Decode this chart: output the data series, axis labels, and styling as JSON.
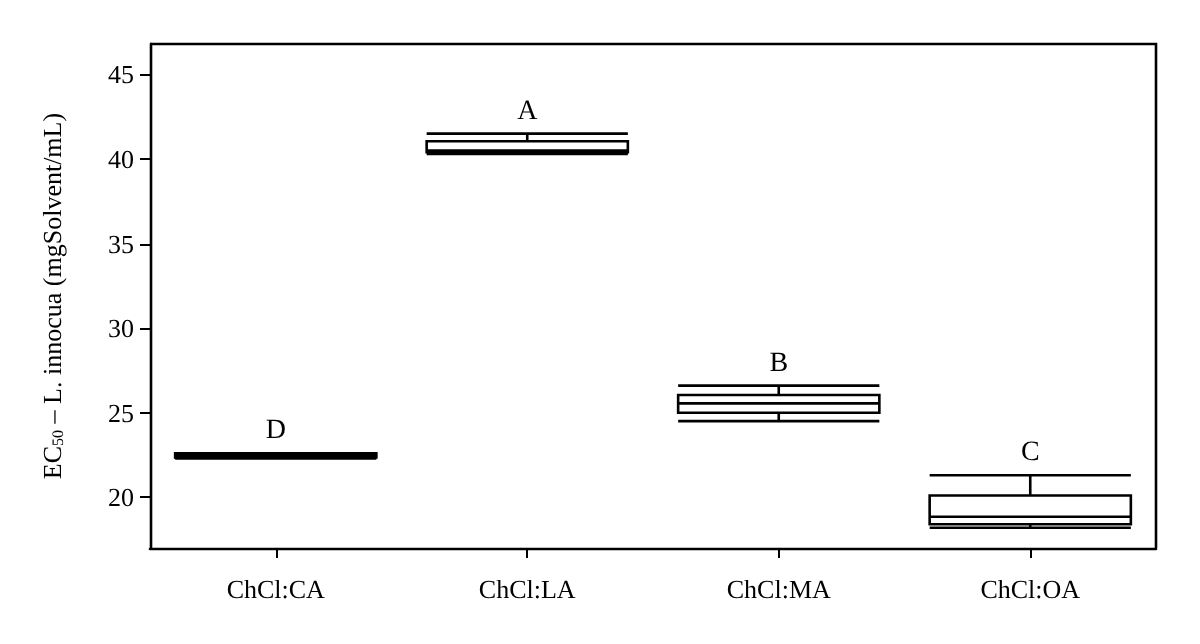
{
  "chart_data": {
    "type": "box",
    "ylabel": "EC$_{50}$ – L. innocua (mgSolvent/mL)",
    "categories": [
      "ChCl:CA",
      "ChCl:LA",
      "ChCl:MA",
      "ChCl:OA"
    ],
    "color": "#000000",
    "boxes": [
      {
        "low": 22.3,
        "q1": 22.35,
        "median": 22.5,
        "q3": 22.6,
        "high": 22.6
      },
      {
        "low": 40.3,
        "q1": 40.4,
        "median": 40.5,
        "q3": 41.05,
        "high": 41.5
      },
      {
        "low": 24.5,
        "q1": 25.0,
        "median": 25.55,
        "q3": 26.05,
        "high": 26.6
      },
      {
        "low": 18.2,
        "q1": 18.4,
        "median": 18.85,
        "q3": 20.1,
        "high": 21.3
      }
    ],
    "ylim": [
      17,
      46.8
    ],
    "yticks": [
      20,
      25,
      30,
      35,
      40,
      45
    ],
    "grid": false,
    "annotations": [
      "D",
      "A",
      "B",
      "C"
    ]
  }
}
